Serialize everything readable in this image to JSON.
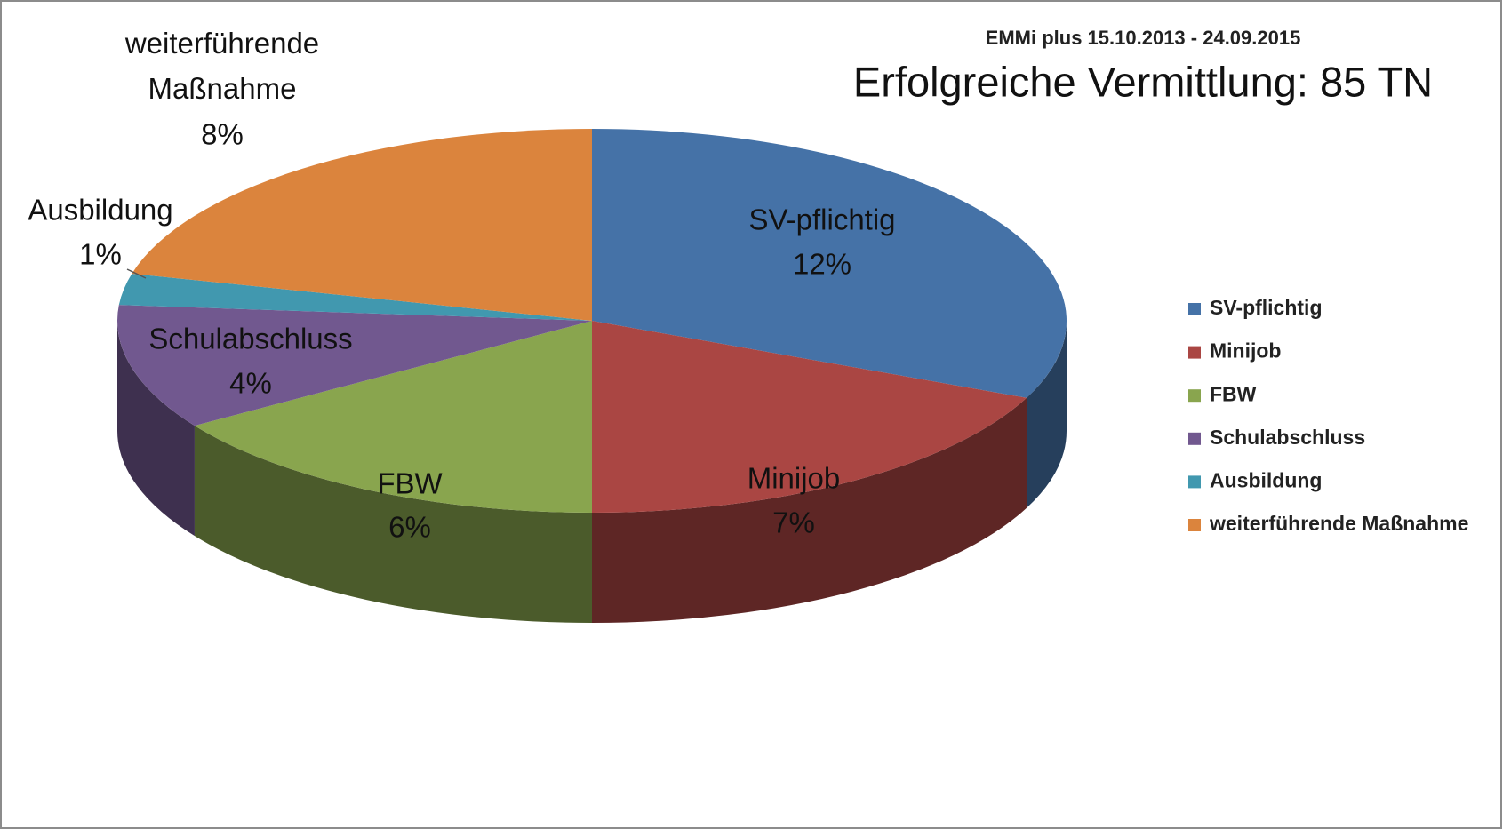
{
  "chart_data": {
    "type": "pie",
    "subtitle": "EMMi plus 15.10.2013 - 24.09.2015",
    "title": "Erfolgreiche Vermittlung: 85 TN",
    "categories": [
      "SV-pflichtig",
      "Minijob",
      "FBW",
      "Schulabschluss",
      "Ausbildung",
      "weiterführende Maßnahme"
    ],
    "values": [
      12,
      7,
      6,
      4,
      1,
      8
    ],
    "value_labels": [
      "12%",
      "7%",
      "6%",
      "4%",
      "1%",
      "8%"
    ],
    "colors": [
      "#4572a7",
      "#aa4643",
      "#89a54e",
      "#71588f",
      "#4198af",
      "#db843d"
    ],
    "legend": "right"
  }
}
